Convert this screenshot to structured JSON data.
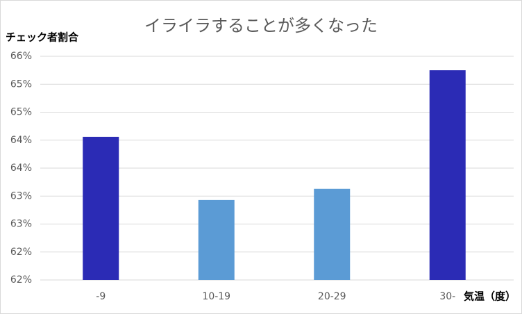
{
  "chart_data": {
    "type": "bar",
    "title": "イライラすることが多くなった",
    "y_label": "チェック者割合",
    "x_label": "気温（度）",
    "categories": [
      "-9",
      "10-19",
      "20-29",
      "30-"
    ],
    "values": [
      64.06,
      62.93,
      63.13,
      65.25
    ],
    "colors": [
      "#2b2bb5",
      "#5b9bd5",
      "#5b9bd5",
      "#2b2bb5"
    ],
    "ylim": [
      61.5,
      65.5
    ],
    "yticks": [
      {
        "value": 61.5,
        "label": "62%"
      },
      {
        "value": 62.0,
        "label": "62%"
      },
      {
        "value": 62.5,
        "label": "63%"
      },
      {
        "value": 63.0,
        "label": "63%"
      },
      {
        "value": 63.5,
        "label": "64%"
      },
      {
        "value": 64.0,
        "label": "64%"
      },
      {
        "value": 64.5,
        "label": "65%"
      },
      {
        "value": 65.0,
        "label": "65%"
      },
      {
        "value": 65.5,
        "label": "66%"
      }
    ],
    "grid": true
  }
}
